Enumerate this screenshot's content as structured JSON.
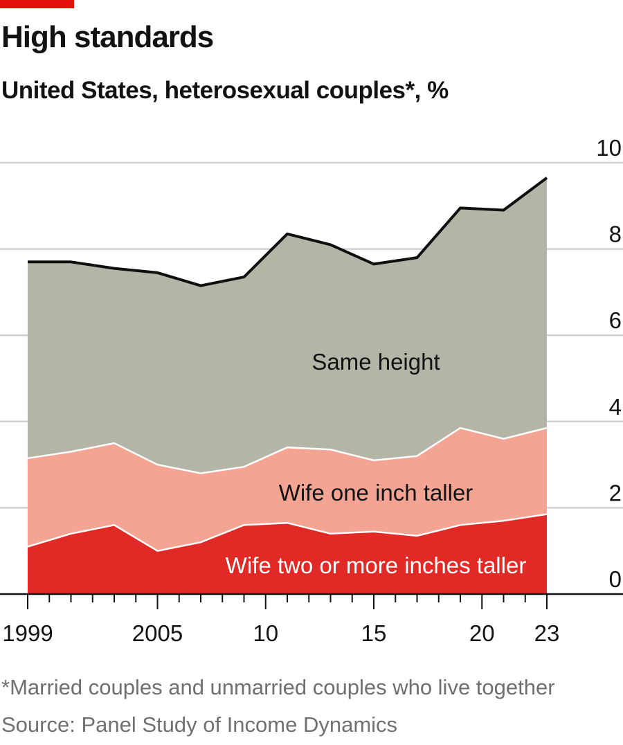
{
  "header": {
    "title": "High standards",
    "subtitle": "United States, heterosexual couples*, %"
  },
  "footer": {
    "footnote": "*Married couples and unmarried couples who live together",
    "source": "Source: Panel Study of Income Dynamics"
  },
  "colors": {
    "accent": "#e3120b",
    "same_height": "#b4b5a7",
    "wife_one_inch": "#f4a493",
    "wife_two_plus": "#e12a25",
    "total_line": "#0f0f0f",
    "grid": "#d0d0d0",
    "axis": "#121212"
  },
  "chart_data": {
    "type": "area",
    "stacked": true,
    "x": [
      1999,
      2001,
      2003,
      2005,
      2007,
      2009,
      2011,
      2013,
      2015,
      2017,
      2019,
      2021,
      2023
    ],
    "x_tick_labels": [
      {
        "x": 1999,
        "label": "1999"
      },
      {
        "x": 2005,
        "label": "2005"
      },
      {
        "x": 2010,
        "label": "10"
      },
      {
        "x": 2015,
        "label": "15"
      },
      {
        "x": 2020,
        "label": "20"
      },
      {
        "x": 2023,
        "label": "23"
      }
    ],
    "y_ticks": [
      0,
      2,
      4,
      6,
      8,
      10
    ],
    "ylim": [
      0,
      10
    ],
    "xlim": [
      1998,
      2026
    ],
    "series": [
      {
        "name": "Wife two or more inches taller",
        "color_key": "wife_two_plus",
        "values": [
          1.1,
          1.4,
          1.6,
          1.0,
          1.2,
          1.6,
          1.65,
          1.4,
          1.45,
          1.35,
          1.6,
          1.7,
          1.85
        ]
      },
      {
        "name": "Wife one inch taller",
        "color_key": "wife_one_inch",
        "values": [
          2.05,
          1.9,
          1.9,
          2.0,
          1.6,
          1.35,
          1.75,
          1.95,
          1.65,
          1.85,
          2.25,
          1.9,
          2.0
        ]
      },
      {
        "name": "Same height",
        "color_key": "same_height",
        "values": [
          4.55,
          4.4,
          4.05,
          4.45,
          4.35,
          4.4,
          4.95,
          4.75,
          4.55,
          4.6,
          5.1,
          5.3,
          5.8
        ]
      }
    ],
    "totals": [
      7.7,
      7.7,
      7.55,
      7.45,
      7.15,
      7.35,
      8.35,
      8.1,
      7.65,
      7.8,
      8.95,
      8.9,
      9.65
    ],
    "grid": true,
    "y_axis_position": "right",
    "legend": "direct labels inside areas"
  }
}
